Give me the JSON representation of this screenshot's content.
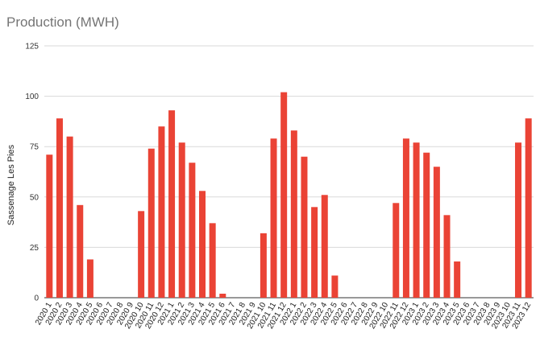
{
  "chart_data": {
    "type": "bar",
    "title": "Production (MWH)",
    "xlabel": "",
    "ylabel": "Sassenage Les Pies",
    "ylim": [
      0,
      125
    ],
    "yticks": [
      0,
      25,
      50,
      75,
      100,
      125
    ],
    "grid": true,
    "bar_color": "#ea4335",
    "categories": [
      "2020 1",
      "2020 2",
      "2020 3",
      "2020 4",
      "2020 5",
      "2020 6",
      "2020 7",
      "2020 8",
      "2020 9",
      "2020 10",
      "2020 11",
      "2020 12",
      "2021 1",
      "2021 2",
      "2021 3",
      "2021 4",
      "2021 5",
      "2021 6",
      "2021 7",
      "2021 8",
      "2021 9",
      "2021 10",
      "2021 11",
      "2021 12",
      "2022 1",
      "2022 2",
      "2022 3",
      "2022 4",
      "2022 5",
      "2022 6",
      "2022 7",
      "2022 8",
      "2022 9",
      "2022 10",
      "2022 11",
      "2022 12",
      "2023 1",
      "2023 2",
      "2023 3",
      "2023 4",
      "2023 5",
      "2023 6",
      "2023 7",
      "2023 8",
      "2023 9",
      "2023 10",
      "2023 11",
      "2023 12"
    ],
    "values": [
      71,
      89,
      80,
      46,
      19,
      0,
      0,
      0,
      0,
      43,
      74,
      85,
      93,
      77,
      67,
      53,
      37,
      2,
      0,
      0,
      0,
      32,
      79,
      102,
      83,
      70,
      45,
      51,
      11,
      0,
      0,
      0,
      0,
      0,
      47,
      79,
      77,
      72,
      65,
      41,
      18,
      0,
      0,
      0,
      0,
      0,
      77,
      89
    ]
  }
}
